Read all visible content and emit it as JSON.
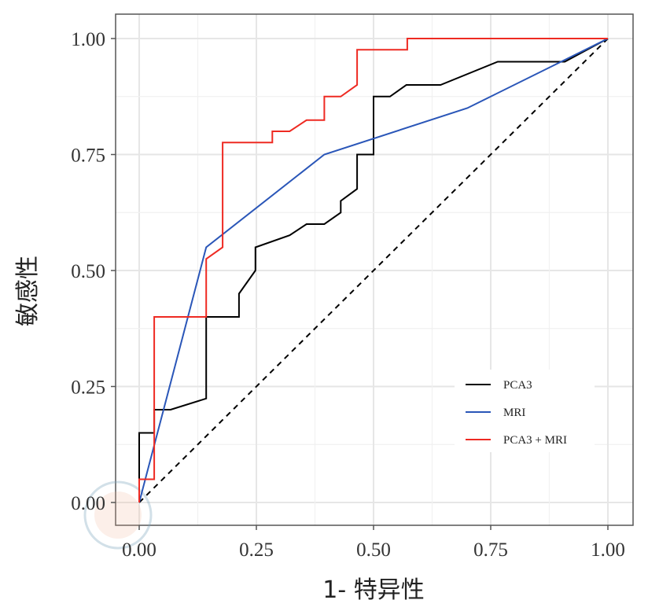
{
  "chart_data": {
    "type": "line",
    "title": "",
    "xlabel": "1- 特异性",
    "ylabel": "敏感性",
    "xlim": [
      0,
      1
    ],
    "ylim": [
      0,
      1
    ],
    "xticks": [
      "0.00",
      "0.25",
      "0.50",
      "0.75",
      "1.00"
    ],
    "yticks": [
      "0.00",
      "0.25",
      "0.50",
      "0.75",
      "1.00"
    ],
    "grid": true,
    "legend_position": "bottom-right",
    "reference_line": {
      "name": "chance",
      "style": "dashed",
      "color": "#000000",
      "x": [
        0,
        1
      ],
      "y": [
        0,
        1
      ]
    },
    "series": [
      {
        "name": "PCA3",
        "color": "#000000",
        "x": [
          0,
          0,
          0.032,
          0.032,
          0.067,
          0.143,
          0.143,
          0.213,
          0.213,
          0.248,
          0.248,
          0.321,
          0.357,
          0.395,
          0.43,
          0.43,
          0.465,
          0.465,
          0.5,
          0.5,
          0.535,
          0.57,
          0.643,
          0.765,
          0.908,
          1
        ],
        "y": [
          0,
          0.15,
          0.15,
          0.2,
          0.2,
          0.224,
          0.4,
          0.4,
          0.45,
          0.5,
          0.55,
          0.576,
          0.6,
          0.6,
          0.625,
          0.65,
          0.676,
          0.75,
          0.75,
          0.875,
          0.875,
          0.9,
          0.9,
          0.95,
          0.95,
          1
        ]
      },
      {
        "name": "MRI",
        "color": "#2a56b8",
        "x": [
          0,
          0.143,
          0.395,
          0.7,
          1
        ],
        "y": [
          0,
          0.55,
          0.75,
          0.85,
          1
        ]
      },
      {
        "name": "PCA3 + MRI",
        "color": "#ee2a22",
        "x": [
          0,
          0,
          0.032,
          0.032,
          0.143,
          0.143,
          0.178,
          0.178,
          0.284,
          0.284,
          0.321,
          0.357,
          0.395,
          0.395,
          0.43,
          0.465,
          0.465,
          0.572,
          0.572,
          1
        ],
        "y": [
          0,
          0.05,
          0.05,
          0.4,
          0.4,
          0.525,
          0.55,
          0.776,
          0.776,
          0.8,
          0.8,
          0.824,
          0.824,
          0.875,
          0.875,
          0.9,
          0.976,
          0.976,
          1,
          1
        ]
      }
    ]
  }
}
